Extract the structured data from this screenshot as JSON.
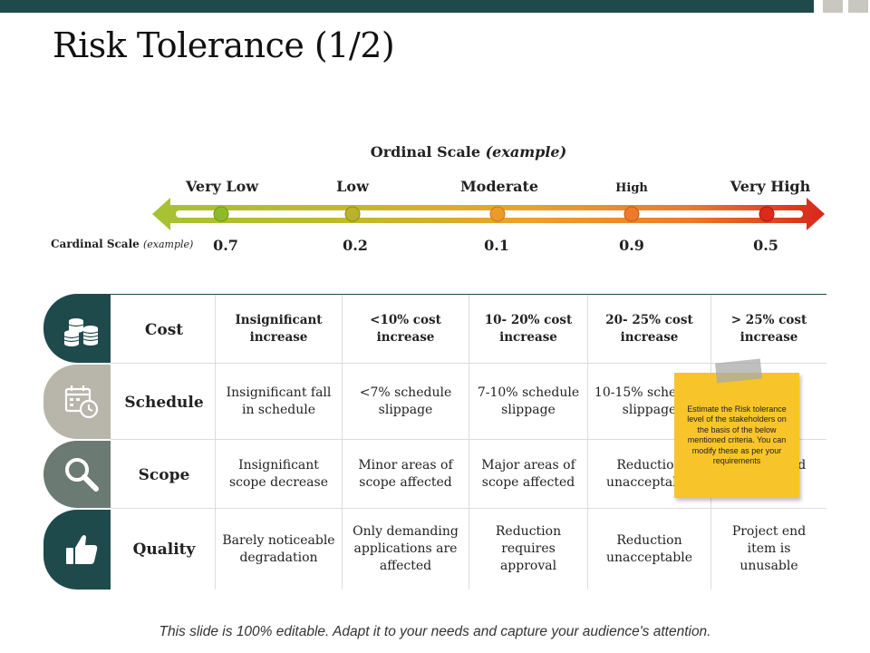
{
  "title": "Risk Tolerance (1/2)",
  "colors": {
    "primary": "#1f4a4c",
    "row_pills": [
      "#1f4a4c",
      "#b8b6aa",
      "#6b7a72",
      "#1f4a4c"
    ],
    "sticky_note": "#f7c52a",
    "level_markers": [
      "#8dbb2a",
      "#b9b22a",
      "#ee9a2a",
      "#ee7a2a",
      "#dd2a1a"
    ]
  },
  "ordinal_scale": {
    "title": "Ordinal Scale",
    "title_suffix": "(example)",
    "levels": [
      "Very Low",
      "Low",
      "Moderate",
      "High",
      "Very High"
    ]
  },
  "cardinal_scale": {
    "label": "Cardinal Scale",
    "label_suffix": "(example)",
    "values": [
      "0.7",
      "0.2",
      "0.1",
      "0.9",
      "0.5"
    ]
  },
  "rows": [
    {
      "label": "Cost",
      "icon": "coins-icon",
      "cells": [
        "Insignificant increase",
        "<10% cost increase",
        "10- 20% cost increase",
        "20- 25% cost increase",
        "> 25% cost increase"
      ]
    },
    {
      "label": "Schedule",
      "icon": "calendar-clock-icon",
      "cells": [
        "Insignificant fall in schedule",
        "<7% schedule slippage",
        "7-10% schedule slippage",
        "10-15% schedule slippage",
        ""
      ]
    },
    {
      "label": "Scope",
      "icon": "magnifier-icon",
      "cells": [
        "Insignificant scope decrease",
        "Minor areas of scope affected",
        "Major areas of scope affected",
        "Reduction unacceptable",
        "Project end item"
      ]
    },
    {
      "label": "Quality",
      "icon": "thumbs-up-icon",
      "cells": [
        "Barely noticeable degradation",
        "Only demanding applications are affected",
        "Reduction requires approval",
        "Reduction unacceptable",
        "Project end item is unusable"
      ]
    }
  ],
  "sticky_note": "Estimate the Risk tolerance level of the stakeholders on the basis of the below mentioned criteria. You can modify these as per your requirements",
  "footer": "This slide is 100% editable. Adapt it to your needs and capture your audience's attention."
}
